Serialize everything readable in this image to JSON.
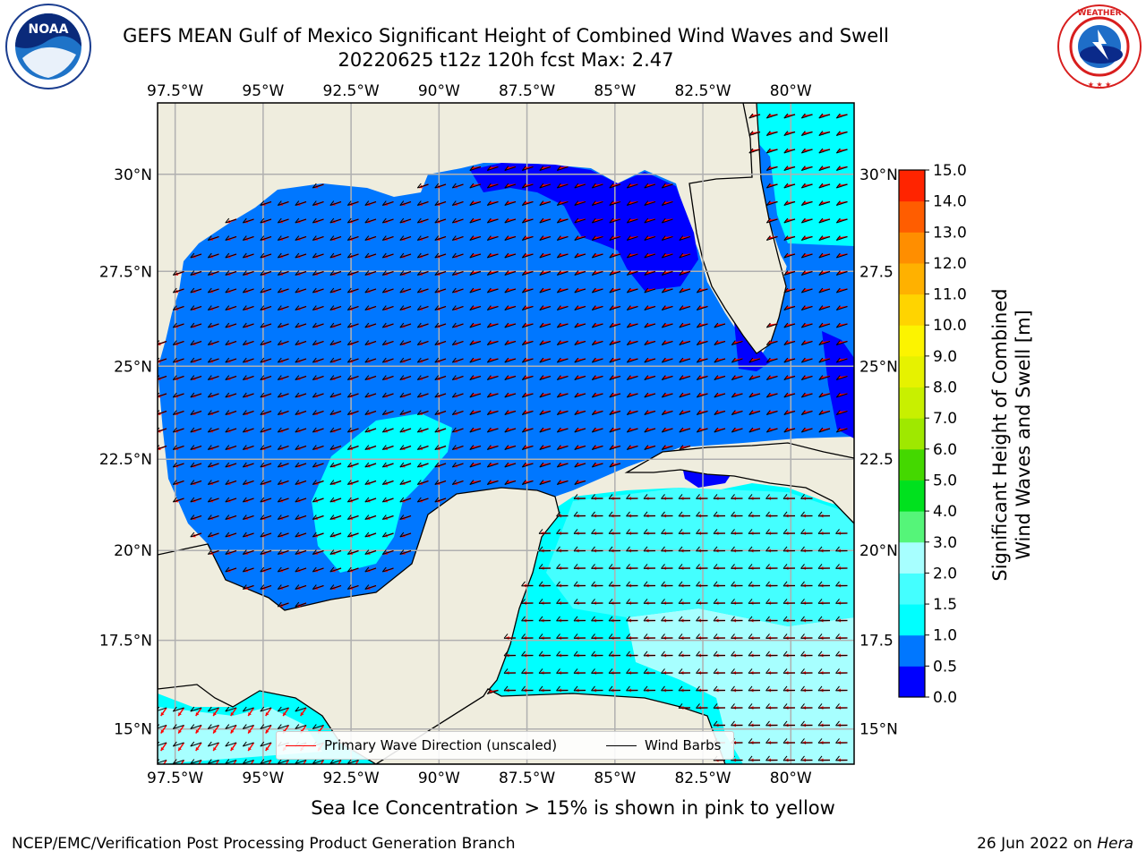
{
  "title_line1": "GEFS MEAN Gulf of Mexico Significant Height of Combined Wind Waves and Swell",
  "title_line2": "20220625 t12z 120h fcst   Max: 2.47",
  "logo_left": {
    "icon": "noaa-logo-icon",
    "text": "NOAA"
  },
  "logo_right": {
    "icon": "national-weather-service-logo-icon",
    "text": "NATIONAL WEATHER SERVICE"
  },
  "lon_ticks": [
    "97.5°W",
    "95°W",
    "92.5°W",
    "90°W",
    "87.5°W",
    "85°W",
    "82.5°W",
    "80°W"
  ],
  "lat_ticks_left": [
    "30°N",
    "27.5°N",
    "25°N",
    "22.5°N",
    "20°N",
    "17.5°N",
    "15°N"
  ],
  "lat_ticks_right": [
    "30°N",
    "27.5",
    "25°N",
    "22.5",
    "20°N",
    "17.5",
    "15°N"
  ],
  "legend": {
    "wave_direction_label": "Primary Wave Direction (unscaled)",
    "wind_barbs_label": "Wind Barbs",
    "wave_direction_color": "#ff0000",
    "wind_barbs_color": "#000000"
  },
  "colorbar": {
    "label_line1": "Significant Height of Combined",
    "label_line2": "Wind Waves and Swell [m]",
    "ticks": [
      "0.0",
      "0.5",
      "1.0",
      "1.5",
      "2.0",
      "3.0",
      "4.0",
      "5.0",
      "6.0",
      "7.0",
      "8.0",
      "9.0",
      "10.0",
      "11.0",
      "12.0",
      "13.0",
      "14.0",
      "15.0"
    ],
    "colors": [
      "#0000ff",
      "#0077ff",
      "#00ffff",
      "#44ffff",
      "#a7ffff",
      "#55f579",
      "#00e11e",
      "#44d800",
      "#9fe800",
      "#c8f000",
      "#e6f200",
      "#fcf400",
      "#ffd400",
      "#ffb100",
      "#ff8e00",
      "#ff5d00",
      "#ff2400"
    ]
  },
  "map": {
    "land_color": "#efedde",
    "ocean_color": "#0077ff",
    "grid_color": "#b0b0b0",
    "extent": {
      "lon_min": -98.0,
      "lon_max": -78.2,
      "lat_min": 14.0,
      "lat_max": 31.8
    }
  },
  "sea_ice_note": "Sea Ice Concentration > 15% is shown in pink to yellow",
  "credit": "NCEP/EMC/Verification Post Processing Product Generation Branch",
  "date": "26 Jun 2022 on ",
  "machine": "Hera"
}
